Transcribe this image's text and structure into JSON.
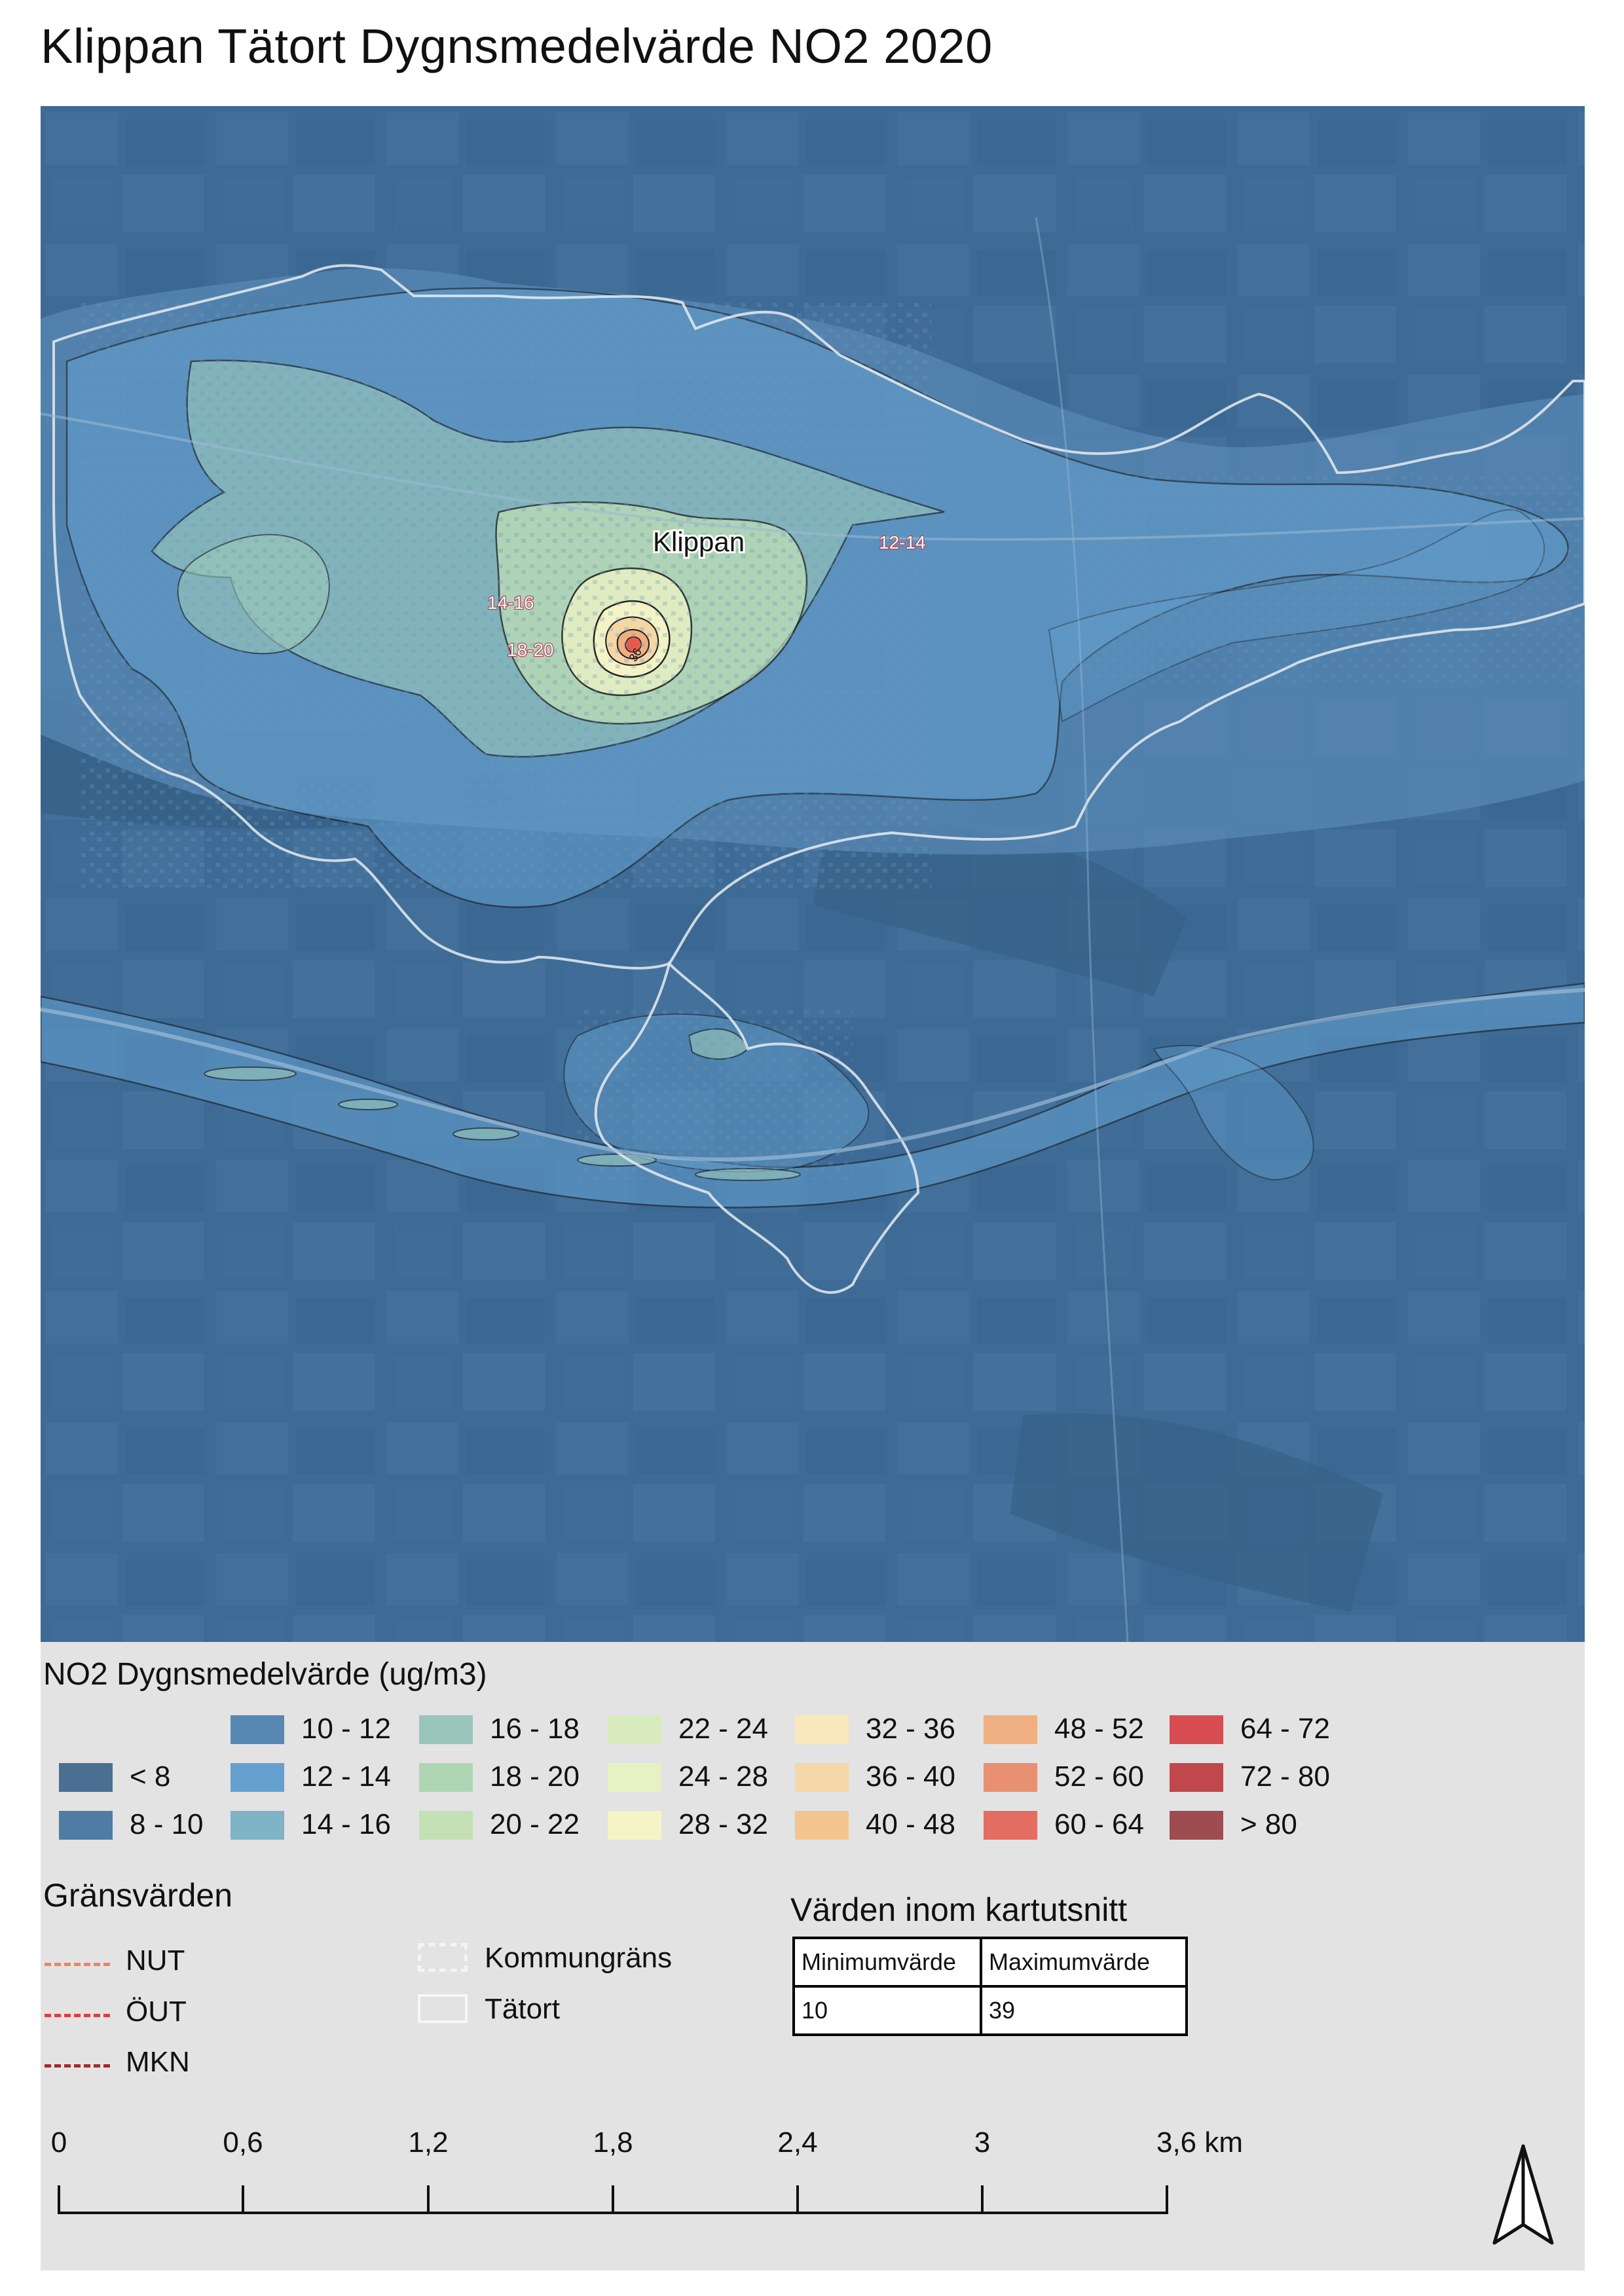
{
  "title": "Klippan Tätort Dygnsmedelvärde NO2 2020",
  "map": {
    "place_label": "Klippan",
    "contour_labels": [
      "12-14",
      "14-16",
      "18-20",
      "36"
    ],
    "colors": {
      "background_level": "#3f6e98",
      "level_12_14": "#5b92be",
      "level_14_16": "#7bb1c2",
      "level_16_18": "#9ccab9",
      "level_18_20": "#b5d9b0",
      "level_20_24": "#d7e8b4",
      "level_28_32": "#f3efbd",
      "level_36_40": "#f3d7a6",
      "level_peak": "#e45a4c",
      "tatort_outline": "#e8ecf0",
      "contour_line": "#1a1a1a"
    }
  },
  "legend": {
    "title": "NO2 Dygnsmedelvärde (ug/m3)",
    "classes": [
      {
        "label": "< 8",
        "color": "#4a6f93"
      },
      {
        "label": "8 - 10",
        "color": "#4f7ca4"
      },
      {
        "label": "10 - 12",
        "color": "#5788b3"
      },
      {
        "label": "12 - 14",
        "color": "#64a0cf"
      },
      {
        "label": "14 - 16",
        "color": "#7fb3c6"
      },
      {
        "label": "16 - 18",
        "color": "#99c5bb"
      },
      {
        "label": "18 - 20",
        "color": "#aed6b3"
      },
      {
        "label": "20 - 22",
        "color": "#c3e1b4"
      },
      {
        "label": "22 - 24",
        "color": "#d7ebbc"
      },
      {
        "label": "24 - 28",
        "color": "#e8f1c4"
      },
      {
        "label": "28 - 32",
        "color": "#f5f4c6"
      },
      {
        "label": "32 - 36",
        "color": "#f8e8bb"
      },
      {
        "label": "36 - 40",
        "color": "#f5d7a8"
      },
      {
        "label": "40 - 48",
        "color": "#f4c58e"
      },
      {
        "label": "48 - 52",
        "color": "#efaf80"
      },
      {
        "label": "52 - 60",
        "color": "#e99073"
      },
      {
        "label": "60 - 64",
        "color": "#e46d62"
      },
      {
        "label": "64 - 72",
        "color": "#d94d52"
      },
      {
        "label": "72 - 80",
        "color": "#c0474b"
      },
      {
        "label": "> 80",
        "color": "#9e4c50"
      }
    ]
  },
  "limits": {
    "title": "Gränsvärden",
    "items": [
      {
        "label": "NUT",
        "color": "#f0845c"
      },
      {
        "label": "ÖUT",
        "color": "#e03c3c"
      },
      {
        "label": "MKN",
        "color": "#a52a2a"
      }
    ],
    "boundaries": [
      {
        "label": "Kommungräns",
        "icon": "dashed-rectangle-icon"
      },
      {
        "label": "Tätort",
        "icon": "outline-rectangle-icon"
      }
    ]
  },
  "range": {
    "title": "Värden inom kartutsnitt",
    "headers": [
      "Minimumvärde",
      "Maximumvärde"
    ],
    "values": [
      "10",
      "39"
    ]
  },
  "scalebar": {
    "ticks": [
      "0",
      "0,6",
      "1,2",
      "1,8",
      "2,4",
      "3",
      "3,6 km"
    ]
  },
  "north_arrow": {
    "icon": "north-arrow-icon"
  }
}
